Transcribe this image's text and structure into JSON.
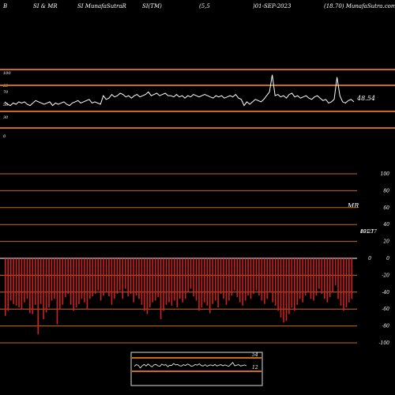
{
  "header": {
    "c1": "B",
    "c2": "SI & MR",
    "c3": "SI MunafaSutraR",
    "c4": "SI(TM)",
    "c5": "(5,5",
    "c6": ")01-SEP-2023",
    "c7": "(18.70) MunafaSutra.com"
  },
  "colors": {
    "background": "#000000",
    "orange": "#c96a14",
    "line": "#ffffff",
    "bar": "#d42020"
  },
  "chart_data": [
    {
      "type": "line",
      "title": "",
      "yticks": [
        "100",
        "80",
        "70",
        "50",
        "30",
        "0"
      ],
      "bands": [
        80,
        70,
        30,
        20
      ],
      "current_label": "48.54",
      "values": [
        50,
        48,
        47,
        49,
        48,
        50,
        49,
        50,
        48,
        47,
        49,
        51,
        50,
        49,
        48,
        49,
        50,
        47,
        49,
        48,
        49,
        50,
        48,
        47,
        49,
        50,
        51,
        49,
        50,
        51,
        52,
        49,
        50,
        49,
        48,
        55,
        52,
        53,
        56,
        54,
        55,
        57,
        56,
        54,
        55,
        53,
        55,
        56,
        54,
        55,
        56,
        58,
        55,
        56,
        57,
        55,
        56,
        57,
        55,
        55,
        54,
        56,
        54,
        55,
        53,
        55,
        54,
        56,
        55,
        54,
        55,
        56,
        55,
        54,
        53,
        55,
        54,
        55,
        53,
        54,
        55,
        54,
        56,
        53,
        52,
        47,
        50,
        48,
        50,
        52,
        51,
        50,
        52,
        55,
        58,
        72,
        55,
        56,
        54,
        55,
        53,
        56,
        57,
        54,
        55,
        53,
        54,
        55,
        53,
        52,
        54,
        55,
        53,
        51,
        52,
        49,
        50,
        52,
        70,
        55,
        50,
        49,
        51,
        52,
        50
      ],
      "ylim": [
        0,
        100
      ]
    },
    {
      "type": "bar",
      "title": "MR",
      "yticks": [
        "100",
        "80",
        "60",
        "40",
        "20",
        "0",
        "-20",
        "-40",
        "-60",
        "-80",
        "-100"
      ],
      "yticks_right": [
        "",
        "",
        "",
        "",
        "",
        "0",
        "",
        "",
        "",
        "",
        ""
      ],
      "overlap_label_a": "101.17",
      "overlap_label_b": "89.27",
      "values": [
        -68,
        -62,
        -50,
        -54,
        -56,
        -58,
        -60,
        -52,
        -48,
        -65,
        -66,
        -55,
        -90,
        -54,
        -72,
        -64,
        -58,
        -50,
        -48,
        -78,
        -60,
        -55,
        -46,
        -42,
        -55,
        -62,
        -58,
        -54,
        -48,
        -52,
        -60,
        -48,
        -45,
        -42,
        -38,
        -50,
        -44,
        -40,
        -45,
        -55,
        -48,
        -42,
        -38,
        -48,
        -36,
        -45,
        -42,
        -52,
        -44,
        -48,
        -55,
        -62,
        -66,
        -58,
        -52,
        -50,
        -46,
        -72,
        -62,
        -55,
        -52,
        -56,
        -50,
        -58,
        -48,
        -52,
        -48,
        -40,
        -36,
        -45,
        -50,
        -62,
        -58,
        -52,
        -56,
        -65,
        -54,
        -50,
        -58,
        -42,
        -48,
        -55,
        -50,
        -44,
        -38,
        -46,
        -52,
        -56,
        -50,
        -44,
        -48,
        -42,
        -38,
        -44,
        -50,
        -54,
        -48,
        -40,
        -52,
        -56,
        -62,
        -70,
        -76,
        -74,
        -66,
        -58,
        -62,
        -55,
        -48,
        -52,
        -44,
        -40,
        -48,
        -50,
        -44,
        -36,
        -42,
        -48,
        -52,
        -46,
        -40,
        -32,
        -48,
        -56,
        -62,
        -58,
        -52,
        -48
      ],
      "ylim": [
        -100,
        100
      ]
    },
    {
      "type": "line",
      "title": "",
      "label_top": "54",
      "label_bottom": "12",
      "values": [
        0.45,
        0.6,
        0.55,
        0.3,
        0.5,
        0.62,
        0.48,
        0.66,
        0.52,
        0.4,
        0.58,
        0.62,
        0.5,
        0.45,
        0.65,
        0.55,
        0.6,
        0.42,
        0.55,
        0.52,
        0.7,
        0.58,
        0.62,
        0.5,
        0.48,
        0.6,
        0.52,
        0.66,
        0.58,
        0.45,
        0.5,
        0.62,
        0.55,
        0.68,
        0.52,
        0.48,
        0.6,
        0.45,
        0.55,
        0.58,
        0.5,
        0.62,
        0.48,
        0.56,
        0.6,
        0.5,
        0.58,
        0.52,
        0.45,
        0.62,
        0.8,
        0.5,
        0.55,
        0.6,
        0.48,
        0.52,
        0.58,
        0.5
      ],
      "ylim": [
        0,
        1
      ]
    }
  ]
}
